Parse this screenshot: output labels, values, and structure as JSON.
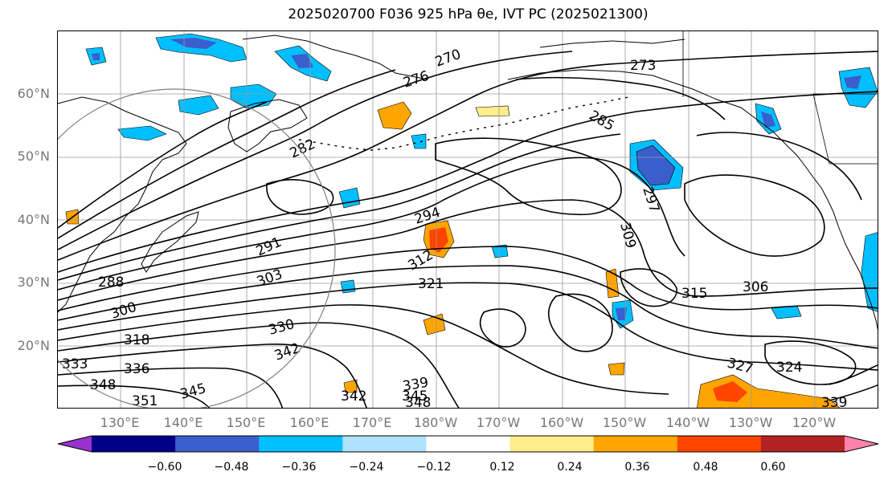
{
  "title": "2025020700 F036 925 hPa θe, IVT PC (2025021300)",
  "lat_labels": [
    "60°N",
    "50°N",
    "40°N",
    "30°N",
    "20°N"
  ],
  "lon_labels": [
    "130°E",
    "140°E",
    "150°E",
    "160°E",
    "170°E",
    "180°W",
    "170°W",
    "160°W",
    "150°W",
    "140°W",
    "130°W",
    "120°W"
  ],
  "contour_labels": [
    "270",
    "273",
    "276",
    "282",
    "285",
    "288",
    "291",
    "294",
    "297",
    "300",
    "303",
    "306",
    "309",
    "312",
    "315",
    "318",
    "321",
    "324",
    "327",
    "330",
    "333",
    "336",
    "339",
    "342",
    "345",
    "348",
    "351"
  ],
  "colorbar": {
    "colors": [
      "#9932cc",
      "#00008b",
      "#3a5fcd",
      "#00bfff",
      "#b0e2ff",
      "#ffffff",
      "#ffec8b",
      "#ffa500",
      "#ff4500",
      "#b22222",
      "#ff82ab"
    ],
    "tick_labels": [
      "−0.60",
      "−0.48",
      "−0.36",
      "−0.24",
      "−0.12",
      "0.12",
      "0.24",
      "0.36",
      "0.48",
      "0.60"
    ]
  },
  "colors": {
    "land_outline": "#000000",
    "contour": "#000000",
    "gridline": "#9a9a9a",
    "axis_label": "#777777"
  }
}
